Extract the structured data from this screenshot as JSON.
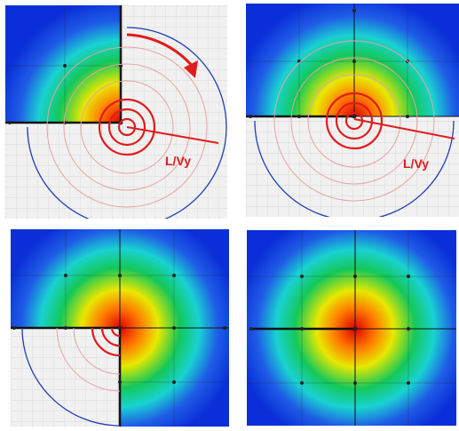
{
  "panels": [
    {
      "id": "top-left",
      "label": "L/Vy"
    },
    {
      "id": "top-right",
      "label": "L/Vy"
    },
    {
      "id": "bottom-left"
    },
    {
      "id": "bottom-right"
    }
  ],
  "colors": {
    "accent": "#e21b1b",
    "arc": "#1f3fb4",
    "grid": "#c9c9c9",
    "background": "#f1f1f1"
  }
}
